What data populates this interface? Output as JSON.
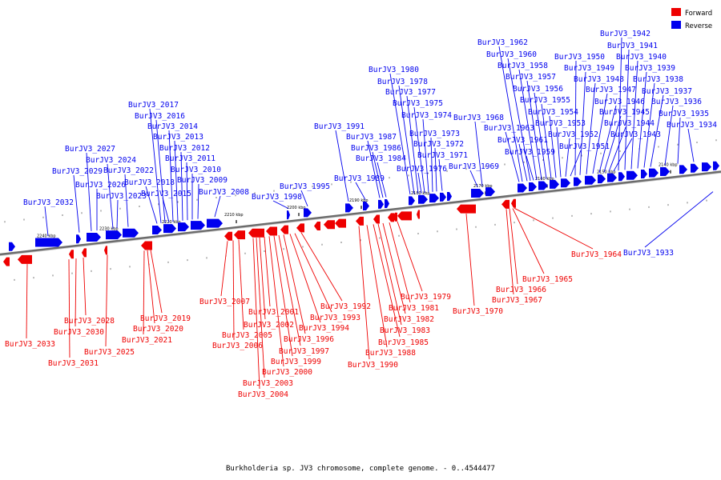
{
  "caption": "Burkholderia sp. JV3 chromosome, complete genome. - 0..4544477",
  "legend": {
    "forward_label": "Forward",
    "reverse_label": "Reverse",
    "forward_color": "#ee0000",
    "reverse_color": "#0000ee"
  },
  "axis_ticks": [
    "2240 kbp",
    "2230 kbp",
    "2220 kbp",
    "2210 kbp",
    "2200 kbp",
    "2190 kbp",
    "2180 kbp",
    "2170 kbp",
    "2160 kbp",
    "2150 kbp",
    "2140 kbp"
  ],
  "reverse_genes": [
    "BurJV3_2032",
    "BurJV3_2029",
    "BurJV3_2027",
    "BurJV3_2026",
    "BurJV3_2024",
    "BurJV3_2023",
    "BurJV3_2022",
    "BurJV3_2018",
    "BurJV3_2017",
    "BurJV3_2016",
    "BurJV3_2015",
    "BurJV3_2014",
    "BurJV3_2013",
    "BurJV3_2012",
    "BurJV3_2011",
    "BurJV3_2010",
    "BurJV3_2009",
    "BurJV3_2008",
    "BurJV3_1998",
    "BurJV3_1995",
    "BurJV3_1991",
    "BurJV3_1989",
    "BurJV3_1987",
    "BurJV3_1986",
    "BurJV3_1984",
    "BurJV3_1980",
    "BurJV3_1978",
    "BurJV3_1977",
    "BurJV3_1976",
    "BurJV3_1975",
    "BurJV3_1974",
    "BurJV3_1973",
    "BurJV3_1972",
    "BurJV3_1971",
    "BurJV3_1969",
    "BurJV3_1968",
    "BurJV3_1963",
    "BurJV3_1962",
    "BurJV3_1961",
    "BurJV3_1960",
    "BurJV3_1959",
    "BurJV3_1958",
    "BurJV3_1957",
    "BurJV3_1956",
    "BurJV3_1955",
    "BurJV3_1954",
    "BurJV3_1953",
    "BurJV3_1952",
    "BurJV3_1951",
    "BurJV3_1950",
    "BurJV3_1949",
    "BurJV3_1948",
    "BurJV3_1947",
    "BurJV3_1946",
    "BurJV3_1945",
    "BurJV3_1944",
    "BurJV3_1943",
    "BurJV3_1942",
    "BurJV3_1941",
    "BurJV3_1940",
    "BurJV3_1939",
    "BurJV3_1938",
    "BurJV3_1937",
    "BurJV3_1936",
    "BurJV3_1935",
    "BurJV3_1934",
    "BurJV3_1933"
  ],
  "forward_genes": [
    "BurJV3_2033",
    "BurJV3_2031",
    "BurJV3_2030",
    "BurJV3_2028",
    "BurJV3_2025",
    "BurJV3_2021",
    "BurJV3_2020",
    "BurJV3_2019",
    "BurJV3_2007",
    "BurJV3_2006",
    "BurJV3_2005",
    "BurJV3_2004",
    "BurJV3_2003",
    "BurJV3_2002",
    "BurJV3_2001",
    "BurJV3_2000",
    "BurJV3_1999",
    "BurJV3_1997",
    "BurJV3_1996",
    "BurJV3_1994",
    "BurJV3_1993",
    "BurJV3_1992",
    "BurJV3_1990",
    "BurJV3_1988",
    "BurJV3_1985",
    "BurJV3_1983",
    "BurJV3_1982",
    "BurJV3_1981",
    "BurJV3_1979",
    "BurJV3_1970",
    "BurJV3_1967",
    "BurJV3_1966",
    "BurJV3_1965",
    "BurJV3_1964"
  ]
}
